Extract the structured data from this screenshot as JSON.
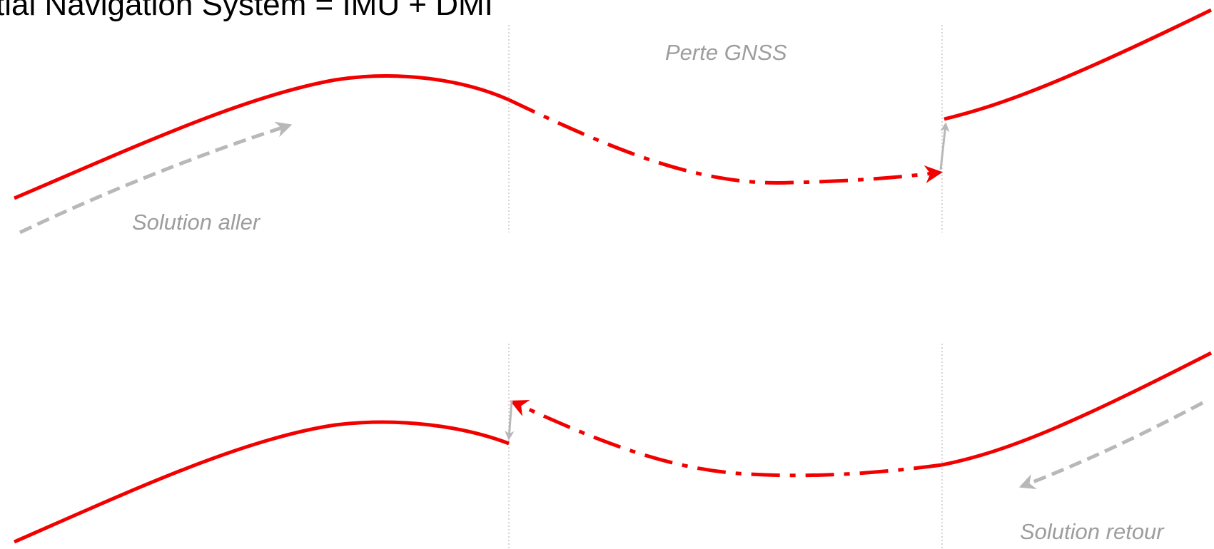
{
  "title": "tial Navigation System = IMU + DMI",
  "labels": {
    "gnss_loss": "Perte GNSS",
    "forward_solution": "Solution aller",
    "backward_solution": "Solution retour"
  },
  "colors": {
    "trajectory": "#f20000",
    "annotation": "#b8b8b8",
    "label": "#9d9d9d",
    "guide": "#c8c8c8"
  }
}
